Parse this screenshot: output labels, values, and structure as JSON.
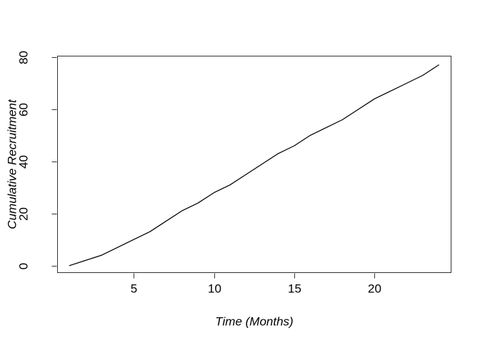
{
  "chart_data": {
    "type": "line",
    "title": "",
    "xlabel": "Time (Months)",
    "ylabel": "Cumulative Recruitment",
    "x": [
      1,
      2,
      3,
      4,
      5,
      6,
      7,
      8,
      9,
      10,
      11,
      12,
      13,
      14,
      15,
      16,
      17,
      18,
      19,
      20,
      21,
      22,
      23,
      24
    ],
    "series": [
      {
        "name": "cumulative-recruitment",
        "values": [
          0,
          2,
          4,
          7,
          10,
          13,
          17,
          21,
          24,
          28,
          31,
          35,
          39,
          43,
          46,
          50,
          53,
          56,
          60,
          64,
          67,
          70,
          73,
          77
        ]
      }
    ],
    "x_ticks": [
      5,
      10,
      15,
      20
    ],
    "y_ticks": [
      0,
      20,
      40,
      60,
      80
    ],
    "xlim": [
      0.23,
      24.79
    ],
    "ylim": [
      -2.83,
      80.55
    ],
    "grid": false,
    "legend": "none",
    "line_color": "#000000",
    "axis_color": "#333333",
    "text_color": "#000000",
    "background": "#ffffff"
  }
}
